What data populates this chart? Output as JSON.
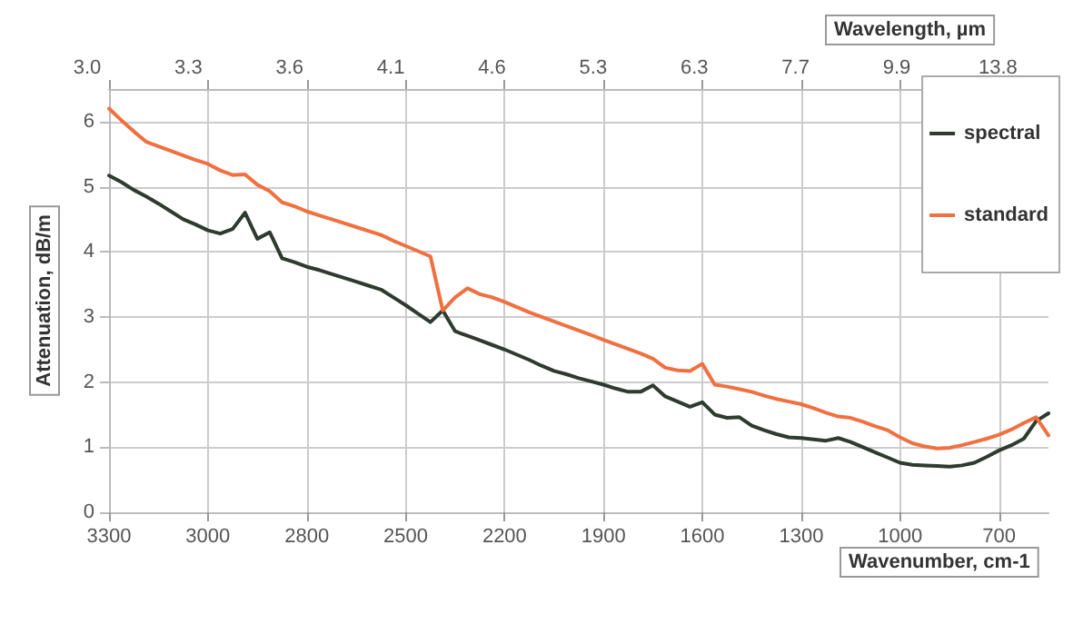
{
  "chart_data": {
    "type": "line",
    "xlabel": "Wavenumber, cm-1",
    "x2label": "Wavelength, µm",
    "ylabel": "Attenuation, dB/m",
    "categories": [
      "3300",
      null,
      null,
      null,
      null,
      null,
      null,
      null,
      "3000",
      null,
      null,
      null,
      null,
      null,
      null,
      null,
      "2800",
      null,
      null,
      null,
      null,
      null,
      null,
      null,
      "2500",
      null,
      null,
      null,
      null,
      null,
      null,
      null,
      "2200",
      null,
      null,
      null,
      null,
      null,
      null,
      null,
      "1900",
      null,
      null,
      null,
      null,
      null,
      null,
      null,
      "1600",
      null,
      null,
      null,
      null,
      null,
      null,
      null,
      "1300",
      null,
      null,
      null,
      null,
      null,
      null,
      null,
      "1000",
      null,
      null,
      null,
      null,
      null,
      null,
      null,
      "700",
      null,
      null,
      null,
      null
    ],
    "annotations": [
      "3.0",
      "3.3",
      "3.6",
      "4.1",
      "4.6",
      "5.3",
      "6.3",
      "7.7",
      "9.9",
      "13.8"
    ],
    "ylim": [
      0,
      6.5
    ],
    "yticks": [
      0,
      1,
      2,
      3,
      4,
      5,
      6
    ],
    "grid": true,
    "legend": "top right",
    "marker": "none",
    "line_style": "solid",
    "series": [
      {
        "name": "spectral",
        "color": "#2e3b2e",
        "values": [
          5.17,
          5.07,
          4.95,
          4.85,
          4.74,
          4.62,
          4.5,
          4.42,
          4.33,
          4.28,
          4.35,
          4.6,
          4.2,
          4.3,
          3.9,
          3.84,
          3.77,
          3.72,
          3.66,
          3.6,
          3.54,
          3.48,
          3.42,
          3.3,
          3.18,
          3.05,
          2.92,
          3.1,
          2.78,
          2.71,
          2.64,
          2.57,
          2.5,
          2.42,
          2.34,
          2.25,
          2.17,
          2.12,
          2.06,
          2.01,
          1.96,
          1.9,
          1.85,
          1.85,
          1.95,
          1.78,
          1.7,
          1.62,
          1.69,
          1.5,
          1.45,
          1.46,
          1.33,
          1.26,
          1.2,
          1.15,
          1.14,
          1.12,
          1.1,
          1.14,
          1.08,
          1.0,
          0.92,
          0.84,
          0.76,
          0.73,
          0.72,
          0.71,
          0.7,
          0.72,
          0.76,
          0.85,
          0.95,
          1.03,
          1.13,
          1.4,
          1.52
        ]
      },
      {
        "name": "standard",
        "color": "#f07040",
        "values": [
          6.2,
          6.02,
          5.85,
          5.69,
          5.62,
          5.55,
          5.48,
          5.41,
          5.35,
          5.25,
          5.18,
          5.19,
          5.03,
          4.93,
          4.76,
          4.7,
          4.62,
          4.56,
          4.5,
          4.44,
          4.38,
          4.32,
          4.26,
          4.17,
          4.09,
          4.01,
          3.93,
          3.1,
          3.3,
          3.44,
          3.35,
          3.3,
          3.23,
          3.15,
          3.07,
          3.0,
          2.93,
          2.86,
          2.79,
          2.72,
          2.65,
          2.58,
          2.51,
          2.44,
          2.36,
          2.22,
          2.18,
          2.17,
          2.28,
          1.96,
          1.93,
          1.89,
          1.85,
          1.79,
          1.74,
          1.7,
          1.66,
          1.6,
          1.53,
          1.47,
          1.45,
          1.39,
          1.32,
          1.26,
          1.15,
          1.06,
          1.01,
          0.98,
          0.99,
          1.03,
          1.08,
          1.13,
          1.19,
          1.27,
          1.37,
          1.46,
          1.18
        ]
      }
    ]
  }
}
